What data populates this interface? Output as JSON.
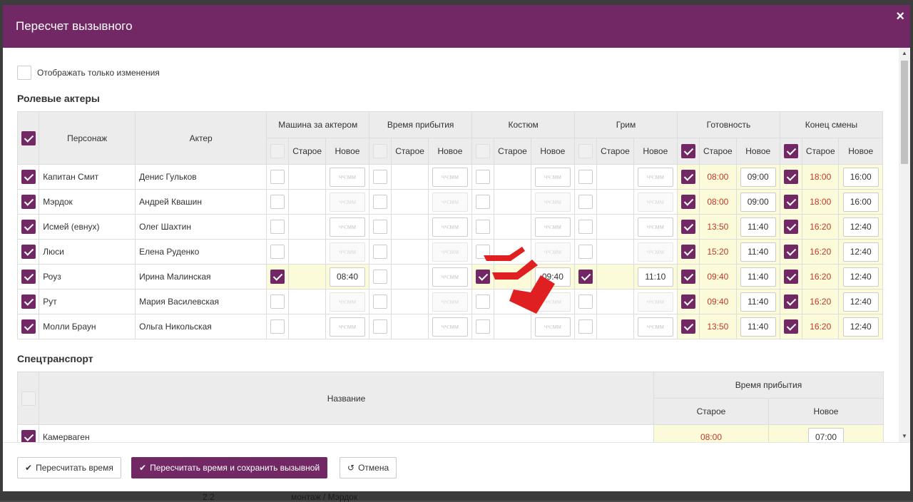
{
  "modal": {
    "title": "Пересчет вызывного",
    "close_label": "×"
  },
  "filter": {
    "only_changes_label": "Отображать только изменения",
    "only_changes_checked": false
  },
  "actors_section": {
    "title": "Ролевые актеры",
    "headers": {
      "character": "Персонаж",
      "actor": "Актер",
      "groups": [
        "Машина за актером",
        "Время прибытия",
        "Костюм",
        "Грим",
        "Готовность",
        "Конец смены"
      ],
      "old": "Старое",
      "new": "Новое"
    },
    "time_placeholder": "чч:мм",
    "group_header_checked": [
      false,
      false,
      false,
      false,
      true,
      true
    ],
    "rows": [
      {
        "checked": true,
        "character": "Капитан Смит",
        "actor": "Денис Гульков",
        "car": {
          "checked": false,
          "new": ""
        },
        "arrival": {
          "checked": false,
          "new": ""
        },
        "costume": {
          "checked": false,
          "new": ""
        },
        "makeup": {
          "checked": false,
          "new": ""
        },
        "ready": {
          "checked": true,
          "old": "08:00",
          "new": "09:00"
        },
        "end": {
          "checked": true,
          "old": "18:00",
          "new": "16:00"
        }
      },
      {
        "checked": true,
        "character": "Мэрдок",
        "actor": "Андрей Квашин",
        "car": {
          "checked": false,
          "new": ""
        },
        "arrival": {
          "checked": false,
          "new": ""
        },
        "costume": {
          "checked": false,
          "new": ""
        },
        "makeup": {
          "checked": false,
          "new": ""
        },
        "ready": {
          "checked": true,
          "old": "08:00",
          "new": "09:00"
        },
        "end": {
          "checked": true,
          "old": "18:00",
          "new": "16:00"
        }
      },
      {
        "checked": true,
        "character": "Исмей (евнух)",
        "actor": "Олег Шахтин",
        "car": {
          "checked": false,
          "new": ""
        },
        "arrival": {
          "checked": false,
          "new": ""
        },
        "costume": {
          "checked": false,
          "new": ""
        },
        "makeup": {
          "checked": false,
          "new": ""
        },
        "ready": {
          "checked": true,
          "old": "13:50",
          "new": "11:40"
        },
        "end": {
          "checked": true,
          "old": "16:20",
          "new": "12:40"
        }
      },
      {
        "checked": true,
        "character": "Люси",
        "actor": "Елена Руденко",
        "car": {
          "checked": false,
          "new": ""
        },
        "arrival": {
          "checked": false,
          "new": ""
        },
        "costume": {
          "checked": false,
          "new": ""
        },
        "makeup": {
          "checked": false,
          "new": ""
        },
        "ready": {
          "checked": true,
          "old": "15:20",
          "new": "11:40"
        },
        "end": {
          "checked": true,
          "old": "16:20",
          "new": "12:40"
        }
      },
      {
        "checked": true,
        "character": "Роуз",
        "actor": "Ирина Малинская",
        "car": {
          "checked": true,
          "new": "08:40"
        },
        "arrival": {
          "checked": false,
          "new": ""
        },
        "costume": {
          "checked": true,
          "new": "09:40"
        },
        "makeup": {
          "checked": true,
          "new": "11:10"
        },
        "ready": {
          "checked": true,
          "old": "09:40",
          "new": "11:40"
        },
        "end": {
          "checked": true,
          "old": "16:20",
          "new": "12:40"
        }
      },
      {
        "checked": true,
        "character": "Рут",
        "actor": "Мария Василевская",
        "car": {
          "checked": false,
          "new": ""
        },
        "arrival": {
          "checked": false,
          "new": ""
        },
        "costume": {
          "checked": false,
          "new": ""
        },
        "makeup": {
          "checked": false,
          "new": ""
        },
        "ready": {
          "checked": true,
          "old": "09:40",
          "new": "11:40"
        },
        "end": {
          "checked": true,
          "old": "16:20",
          "new": "12:40"
        }
      },
      {
        "checked": true,
        "character": "Молли Браун",
        "actor": "Ольга Никольская",
        "car": {
          "checked": false,
          "new": ""
        },
        "arrival": {
          "checked": false,
          "new": ""
        },
        "costume": {
          "checked": false,
          "new": ""
        },
        "makeup": {
          "checked": false,
          "new": ""
        },
        "ready": {
          "checked": true,
          "old": "13:50",
          "new": "11:40"
        },
        "end": {
          "checked": true,
          "old": "16:20",
          "new": "12:40"
        }
      }
    ]
  },
  "transport_section": {
    "title": "Спецтранспорт",
    "headers": {
      "name": "Название",
      "arrival": "Время прибытия",
      "old": "Старое",
      "new": "Новое"
    },
    "rows": [
      {
        "checked": true,
        "name": "Камерваген",
        "old": "08:00",
        "new": "07:00"
      }
    ]
  },
  "footer": {
    "recalc_label": "Пересчитать время",
    "recalc_save_label": "Пересчитать время и сохранить вызывной",
    "cancel_label": "Отмена"
  },
  "background": {
    "fragment_a": "2.2",
    "fragment_b": "монтаж / Мэрдок"
  },
  "colors": {
    "brand": "#722865",
    "highlight": "#fbfbd9",
    "old_time": "#c0392b",
    "arrow": "#e02020"
  }
}
